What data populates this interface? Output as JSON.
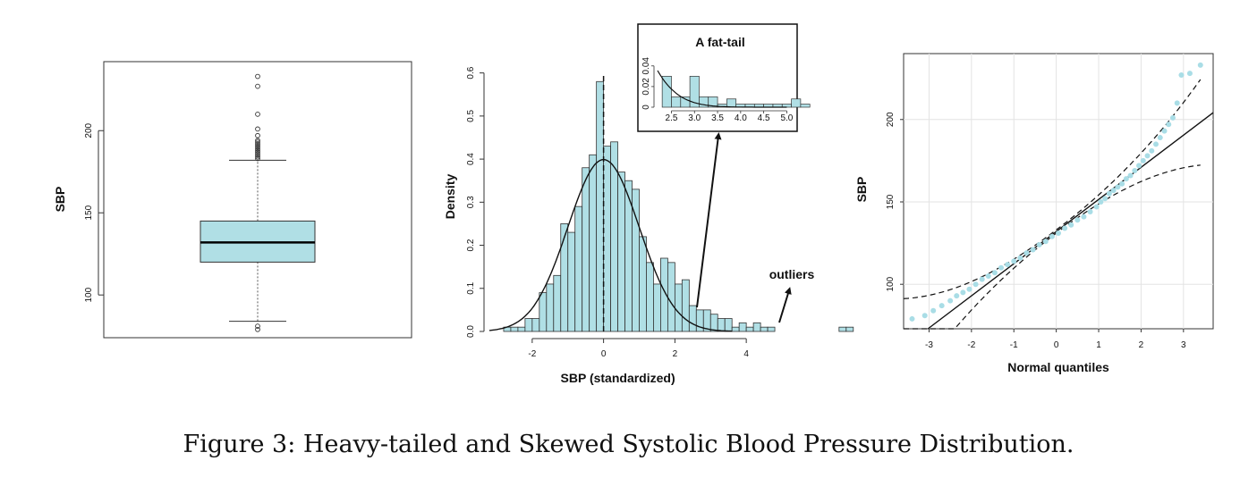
{
  "caption": "Figure 3: Heavy-tailed and Skewed Systolic Blood Pressure Distribution.",
  "colors": {
    "fill": "#b0dfe5",
    "edge": "#333333",
    "point": "#a9dde6"
  },
  "chart_data": [
    {
      "type": "box",
      "ylabel": "SBP",
      "ylim": [
        74,
        242
      ],
      "yticks": [
        100,
        150,
        200
      ],
      "box": {
        "whisker_low": 84,
        "q1": 120,
        "median": 132,
        "q3": 145,
        "whisker_high": 182
      },
      "outliers": [
        233,
        227,
        210,
        201,
        197,
        194,
        193,
        192,
        191,
        190,
        189,
        188,
        187,
        186,
        185,
        184,
        183,
        81,
        79
      ]
    },
    {
      "type": "bar",
      "subtype": "histogram",
      "xlabel": "SBP (standardized)",
      "ylabel": "Density",
      "xlim": [
        -3.2,
        5.2
      ],
      "ylim": [
        0,
        0.62
      ],
      "xticks": [
        -2,
        0,
        2,
        4
      ],
      "yticks": [
        0.0,
        0.1,
        0.2,
        0.3,
        0.4,
        0.5,
        0.6
      ],
      "bin_start": -3.0,
      "bin_width": 0.2,
      "densities": [
        0,
        0.01,
        0.01,
        0.01,
        0.03,
        0.03,
        0.09,
        0.11,
        0.13,
        0.25,
        0.23,
        0.29,
        0.38,
        0.41,
        0.58,
        0.43,
        0.44,
        0.37,
        0.35,
        0.33,
        0.22,
        0.16,
        0.11,
        0.17,
        0.16,
        0.11,
        0.12,
        0.06,
        0.05,
        0.05,
        0.04,
        0.03,
        0.03,
        0.01,
        0.02,
        0.01,
        0.02,
        0.01,
        0.01,
        0,
        0,
        0,
        0,
        0,
        0,
        0,
        0,
        0,
        0.01,
        0.01
      ],
      "curve": "standard normal density",
      "mean_line_x": 0,
      "annotations": [
        "A fat-tail",
        "outliers"
      ],
      "inset": {
        "title": "A fat-tail",
        "xlim": [
          2.2,
          5.05
        ],
        "ylim": [
          0,
          0.045
        ],
        "xticks": [
          2.5,
          3.0,
          3.5,
          4.0,
          4.5,
          5.0
        ],
        "yticks": [
          0.0,
          0.02,
          0.04
        ],
        "bin_start": 2.3,
        "bin_width": 0.2,
        "densities": [
          0.03,
          0.01,
          0.01,
          0.03,
          0.01,
          0.01,
          0.003,
          0.008,
          0.003,
          0.003,
          0.003,
          0.003,
          0.003,
          0.003,
          0.008,
          0.003
        ]
      }
    },
    {
      "type": "scatter",
      "subtype": "qq-plot",
      "xlabel": "Normal quantiles",
      "ylabel": "SBP",
      "xlim": [
        -3.6,
        3.7
      ],
      "ylim": [
        73,
        240
      ],
      "xticks": [
        -3,
        -2,
        -1,
        0,
        1,
        2,
        3
      ],
      "yticks": [
        100,
        150,
        200
      ],
      "grid": true,
      "reference_line": {
        "intercept": 132,
        "slope": 19.5
      },
      "points": [
        [
          -3.4,
          79
        ],
        [
          -3.1,
          81
        ],
        [
          -2.9,
          84
        ],
        [
          -2.7,
          87
        ],
        [
          -2.5,
          90
        ],
        [
          -2.35,
          93
        ],
        [
          -2.2,
          95
        ],
        [
          -2.05,
          97
        ],
        [
          -1.9,
          100
        ],
        [
          -1.75,
          103
        ],
        [
          -1.6,
          105
        ],
        [
          -1.45,
          107
        ],
        [
          -1.3,
          110
        ],
        [
          -1.15,
          112
        ],
        [
          -1.0,
          114
        ],
        [
          -0.85,
          116
        ],
        [
          -0.7,
          119
        ],
        [
          -0.55,
          121
        ],
        [
          -0.4,
          124
        ],
        [
          -0.25,
          126
        ],
        [
          -0.1,
          129
        ],
        [
          0.05,
          131
        ],
        [
          0.2,
          134
        ],
        [
          0.35,
          136
        ],
        [
          0.5,
          139
        ],
        [
          0.65,
          141
        ],
        [
          0.8,
          144
        ],
        [
          0.95,
          147
        ],
        [
          1.05,
          150
        ],
        [
          1.15,
          152
        ],
        [
          1.25,
          155
        ],
        [
          1.35,
          157
        ],
        [
          1.45,
          159
        ],
        [
          1.55,
          161
        ],
        [
          1.65,
          164
        ],
        [
          1.75,
          166
        ],
        [
          1.85,
          169
        ],
        [
          1.95,
          172
        ],
        [
          2.05,
          175
        ],
        [
          2.15,
          178
        ],
        [
          2.25,
          181
        ],
        [
          2.35,
          185
        ],
        [
          2.45,
          189
        ],
        [
          2.55,
          193
        ],
        [
          2.65,
          197
        ],
        [
          2.75,
          201
        ],
        [
          2.85,
          210
        ],
        [
          2.95,
          227
        ],
        [
          3.15,
          228
        ],
        [
          3.4,
          233
        ]
      ]
    }
  ]
}
